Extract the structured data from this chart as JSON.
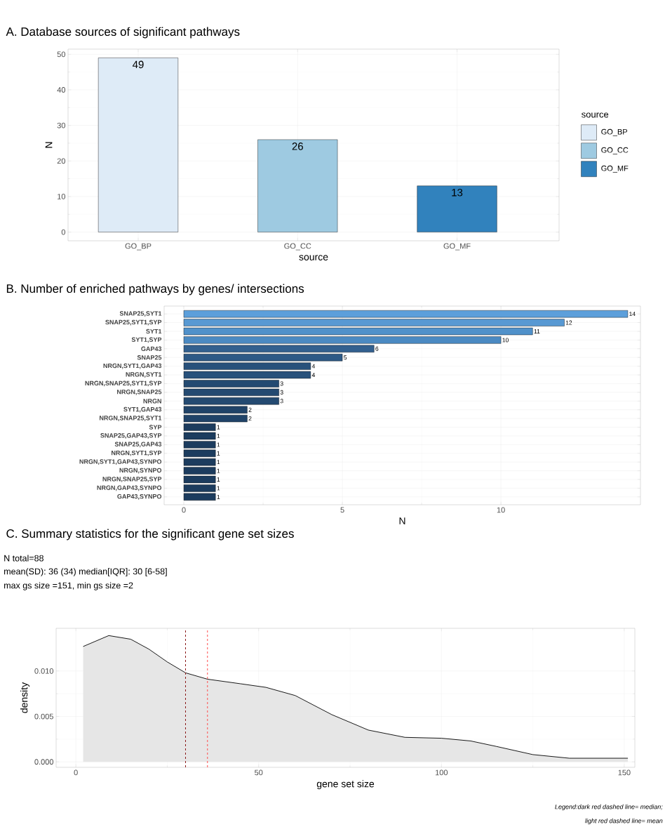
{
  "chart_data": [
    {
      "type": "bar",
      "title": "A. Database sources of significant pathways",
      "xlabel": "source",
      "ylabel": "N",
      "categories": [
        "GO_BP",
        "GO_CC",
        "GO_MF"
      ],
      "series": [
        {
          "name": "GO_BP",
          "color": "#deebf7",
          "values": [
            49,
            null,
            null
          ]
        },
        {
          "name": "GO_CC",
          "color": "#9ecae1",
          "values": [
            null,
            26,
            null
          ]
        },
        {
          "name": "GO_MF",
          "color": "#3182bd",
          "values": [
            null,
            null,
            13
          ]
        }
      ],
      "ylim": [
        -2.45,
        51.45
      ],
      "yticks": [
        0,
        10,
        20,
        30,
        40,
        50
      ],
      "data_labels": true,
      "legend": "right",
      "legend_title": "source",
      "grid": true
    },
    {
      "type": "bar",
      "orientation": "horizontal",
      "title": "B. Number of enriched pathways by genes/ intersections",
      "xlabel": "N",
      "categories": [
        "SNAP25,SYT1",
        "SNAP25,SYT1,SYP",
        "SYT1",
        "SYT1,SYP",
        "GAP43",
        "SNAP25",
        "NRGN,SYT1,GAP43",
        "NRGN,SYT1",
        "NRGN,SNAP25,SYT1,SYP",
        "NRGN,SNAP25",
        "NRGN",
        "SYT1,GAP43",
        "NRGN,SNAP25,SYT1",
        "SYP",
        "SNAP25,GAP43,SYP",
        "SNAP25,GAP43",
        "NRGN,SYT1,SYP",
        "NRGN,SYT1,GAP43,SYNPO",
        "NRGN,SYNPO",
        "NRGN,SNAP25,SYP",
        "NRGN,GAP43,SYNPO",
        "GAP43,SYNPO"
      ],
      "values": [
        14,
        12,
        11,
        10,
        6,
        5,
        4,
        4,
        3,
        3,
        3,
        2,
        2,
        1,
        1,
        1,
        1,
        1,
        1,
        1,
        1,
        1
      ],
      "colors": [
        "#5c9fdb",
        "#5899d3",
        "#5091ca",
        "#4b8ac2",
        "#32608f",
        "#2d5986",
        "#28517b",
        "#28517b",
        "#244a71",
        "#244a71",
        "#244a71",
        "#204368",
        "#204368",
        "#1c3c5e",
        "#1c3c5e",
        "#1c3c5e",
        "#1c3c5e",
        "#1c3c5e",
        "#1c3c5e",
        "#1c3c5e",
        "#1c3c5e",
        "#1c3c5e"
      ],
      "xlim": [
        -0.62,
        14.4
      ],
      "xticks": [
        0,
        5,
        10
      ],
      "data_labels": true,
      "grid": true
    },
    {
      "type": "area",
      "title": "C. Summary statistics for the significant gene set sizes",
      "xlabel": "gene set size",
      "ylabel": "density",
      "x": [
        2,
        9,
        15,
        20,
        25,
        30,
        36,
        45,
        52,
        60,
        70,
        80,
        90,
        100,
        108,
        115,
        125,
        135,
        145,
        151
      ],
      "values": [
        0.0127,
        0.0139,
        0.0135,
        0.0124,
        0.011,
        0.0098,
        0.0091,
        0.0086,
        0.0082,
        0.0073,
        0.0052,
        0.0035,
        0.0027,
        0.0026,
        0.0023,
        0.0017,
        0.0008,
        0.0004,
        0.0004,
        0.0004
      ],
      "color": "#e6e6e6",
      "xlim": [
        -5.4,
        152.9
      ],
      "ylim": [
        -0.0006,
        0.0147
      ],
      "xticks": [
        0,
        50,
        100,
        150
      ],
      "yticks": [
        {
          "value": 0,
          "label": "0.000"
        },
        {
          "value": 0.005,
          "label": "0.005"
        },
        {
          "value": 0.01,
          "label": "0.010"
        }
      ],
      "ref_lines": [
        {
          "axis": "x",
          "value": 30,
          "color": "#8b1a1a",
          "line_style": "dashed"
        },
        {
          "axis": "x",
          "value": 36,
          "color": "#ff4d4d",
          "line_style": "dashed"
        }
      ],
      "annotations": [
        "N total=88",
        "mean(SD): 36 (34) median[IQR]: 30 [6-58]",
        "max gs size =151, min gs size =2",
        "Legend:dark red dashed line= median;",
        "light red dashed line= mean"
      ],
      "grid": true
    }
  ]
}
